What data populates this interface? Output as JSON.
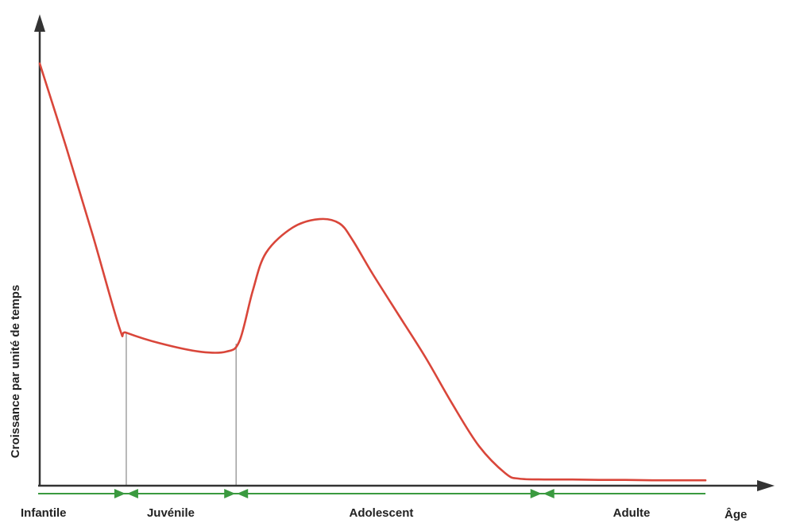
{
  "chart_data": {
    "type": "line",
    "title": "",
    "xlabel": "Âge",
    "ylabel": "Croissance par unité de temps",
    "xlim": [
      0,
      100
    ],
    "ylim": [
      0,
      100
    ],
    "grid": false,
    "series": [
      {
        "color": "#d9463a",
        "x": [
          0,
          4,
          8,
          12,
          13,
          18,
          24,
          28,
          30,
          32,
          34,
          38,
          42,
          45,
          47,
          50,
          54,
          58,
          62,
          66,
          70,
          72,
          76,
          80,
          84,
          88,
          92,
          96,
          100
        ],
        "y": [
          100,
          80,
          59,
          37,
          36,
          33.5,
          31.5,
          31.5,
          34,
          46,
          55,
          61,
          63,
          62,
          58,
          50,
          40,
          30,
          19,
          9,
          2.5,
          1.3,
          1.1,
          1.1,
          1.0,
          1.0,
          0.9,
          0.9,
          0.9
        ]
      }
    ],
    "phase_boundaries": [
      13,
      29.5,
      75.5
    ],
    "phases": [
      "Infantile",
      "Juvénile",
      "Adolescent",
      "Adulte"
    ],
    "colors": {
      "curve": "#d9463a",
      "axis": "#333333",
      "phase_line": "#3a9a3f",
      "phase_arrow": "#3a9a3f",
      "boundary_line": "#9a9a9a",
      "label_text": "#222222"
    }
  }
}
